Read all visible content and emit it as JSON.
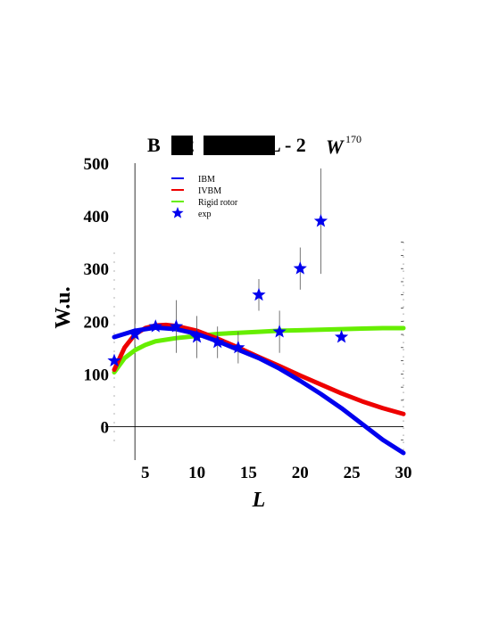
{
  "chart_data": {
    "type": "line",
    "title": {
      "prefix": "B",
      "fragment": "E2",
      "suffix": "L - 2",
      "w_label": "W",
      "w_superscript": "170"
    },
    "xlabel": "L",
    "ylabel": "W.u.",
    "xlim": [
      2,
      30
    ],
    "ylim": [
      -50,
      500
    ],
    "xticks": [
      5,
      10,
      15,
      20,
      25,
      30
    ],
    "yticks": [
      0,
      100,
      200,
      300,
      400,
      500
    ],
    "grid": false,
    "legend_position": "top-left",
    "series": [
      {
        "name": "IBM",
        "style": "line",
        "color": "#0000ee",
        "x": [
          2,
          4,
          6,
          8,
          10,
          12,
          14,
          16,
          18,
          20,
          22,
          24,
          26,
          28,
          30
        ],
        "y": [
          170,
          182,
          188,
          185,
          176,
          162,
          146,
          130,
          110,
          87,
          62,
          35,
          5,
          -25,
          -50
        ]
      },
      {
        "name": "IVBM",
        "style": "line",
        "color": "#ee0000",
        "x": [
          2,
          3,
          4,
          5,
          6,
          7,
          8,
          10,
          12,
          14,
          16,
          18,
          20,
          22,
          24,
          26,
          28,
          30
        ],
        "y": [
          108,
          150,
          175,
          187,
          192,
          193,
          191,
          182,
          167,
          150,
          132,
          115,
          97,
          80,
          63,
          48,
          35,
          24
        ]
      },
      {
        "name": "Rigid rotor",
        "style": "line",
        "color": "#66ee00",
        "x": [
          2,
          3,
          4,
          5,
          6,
          8,
          10,
          12,
          14,
          16,
          18,
          20,
          22,
          24,
          26,
          28,
          30
        ],
        "y": [
          103,
          130,
          145,
          155,
          162,
          168,
          172,
          176,
          178,
          180,
          182,
          183,
          184,
          185,
          186,
          187,
          187
        ]
      },
      {
        "name": "exp",
        "style": "marker",
        "color": "#0000ee",
        "x": [
          2,
          4,
          6,
          8,
          10,
          12,
          14,
          16,
          18,
          20,
          22,
          24
        ],
        "y": [
          125,
          175,
          190,
          190,
          170,
          160,
          150,
          250,
          180,
          300,
          390,
          170
        ],
        "error": [
          null,
          20,
          null,
          50,
          40,
          30,
          30,
          30,
          40,
          40,
          100,
          null
        ]
      }
    ],
    "colors": {
      "axes": "#000000"
    }
  }
}
